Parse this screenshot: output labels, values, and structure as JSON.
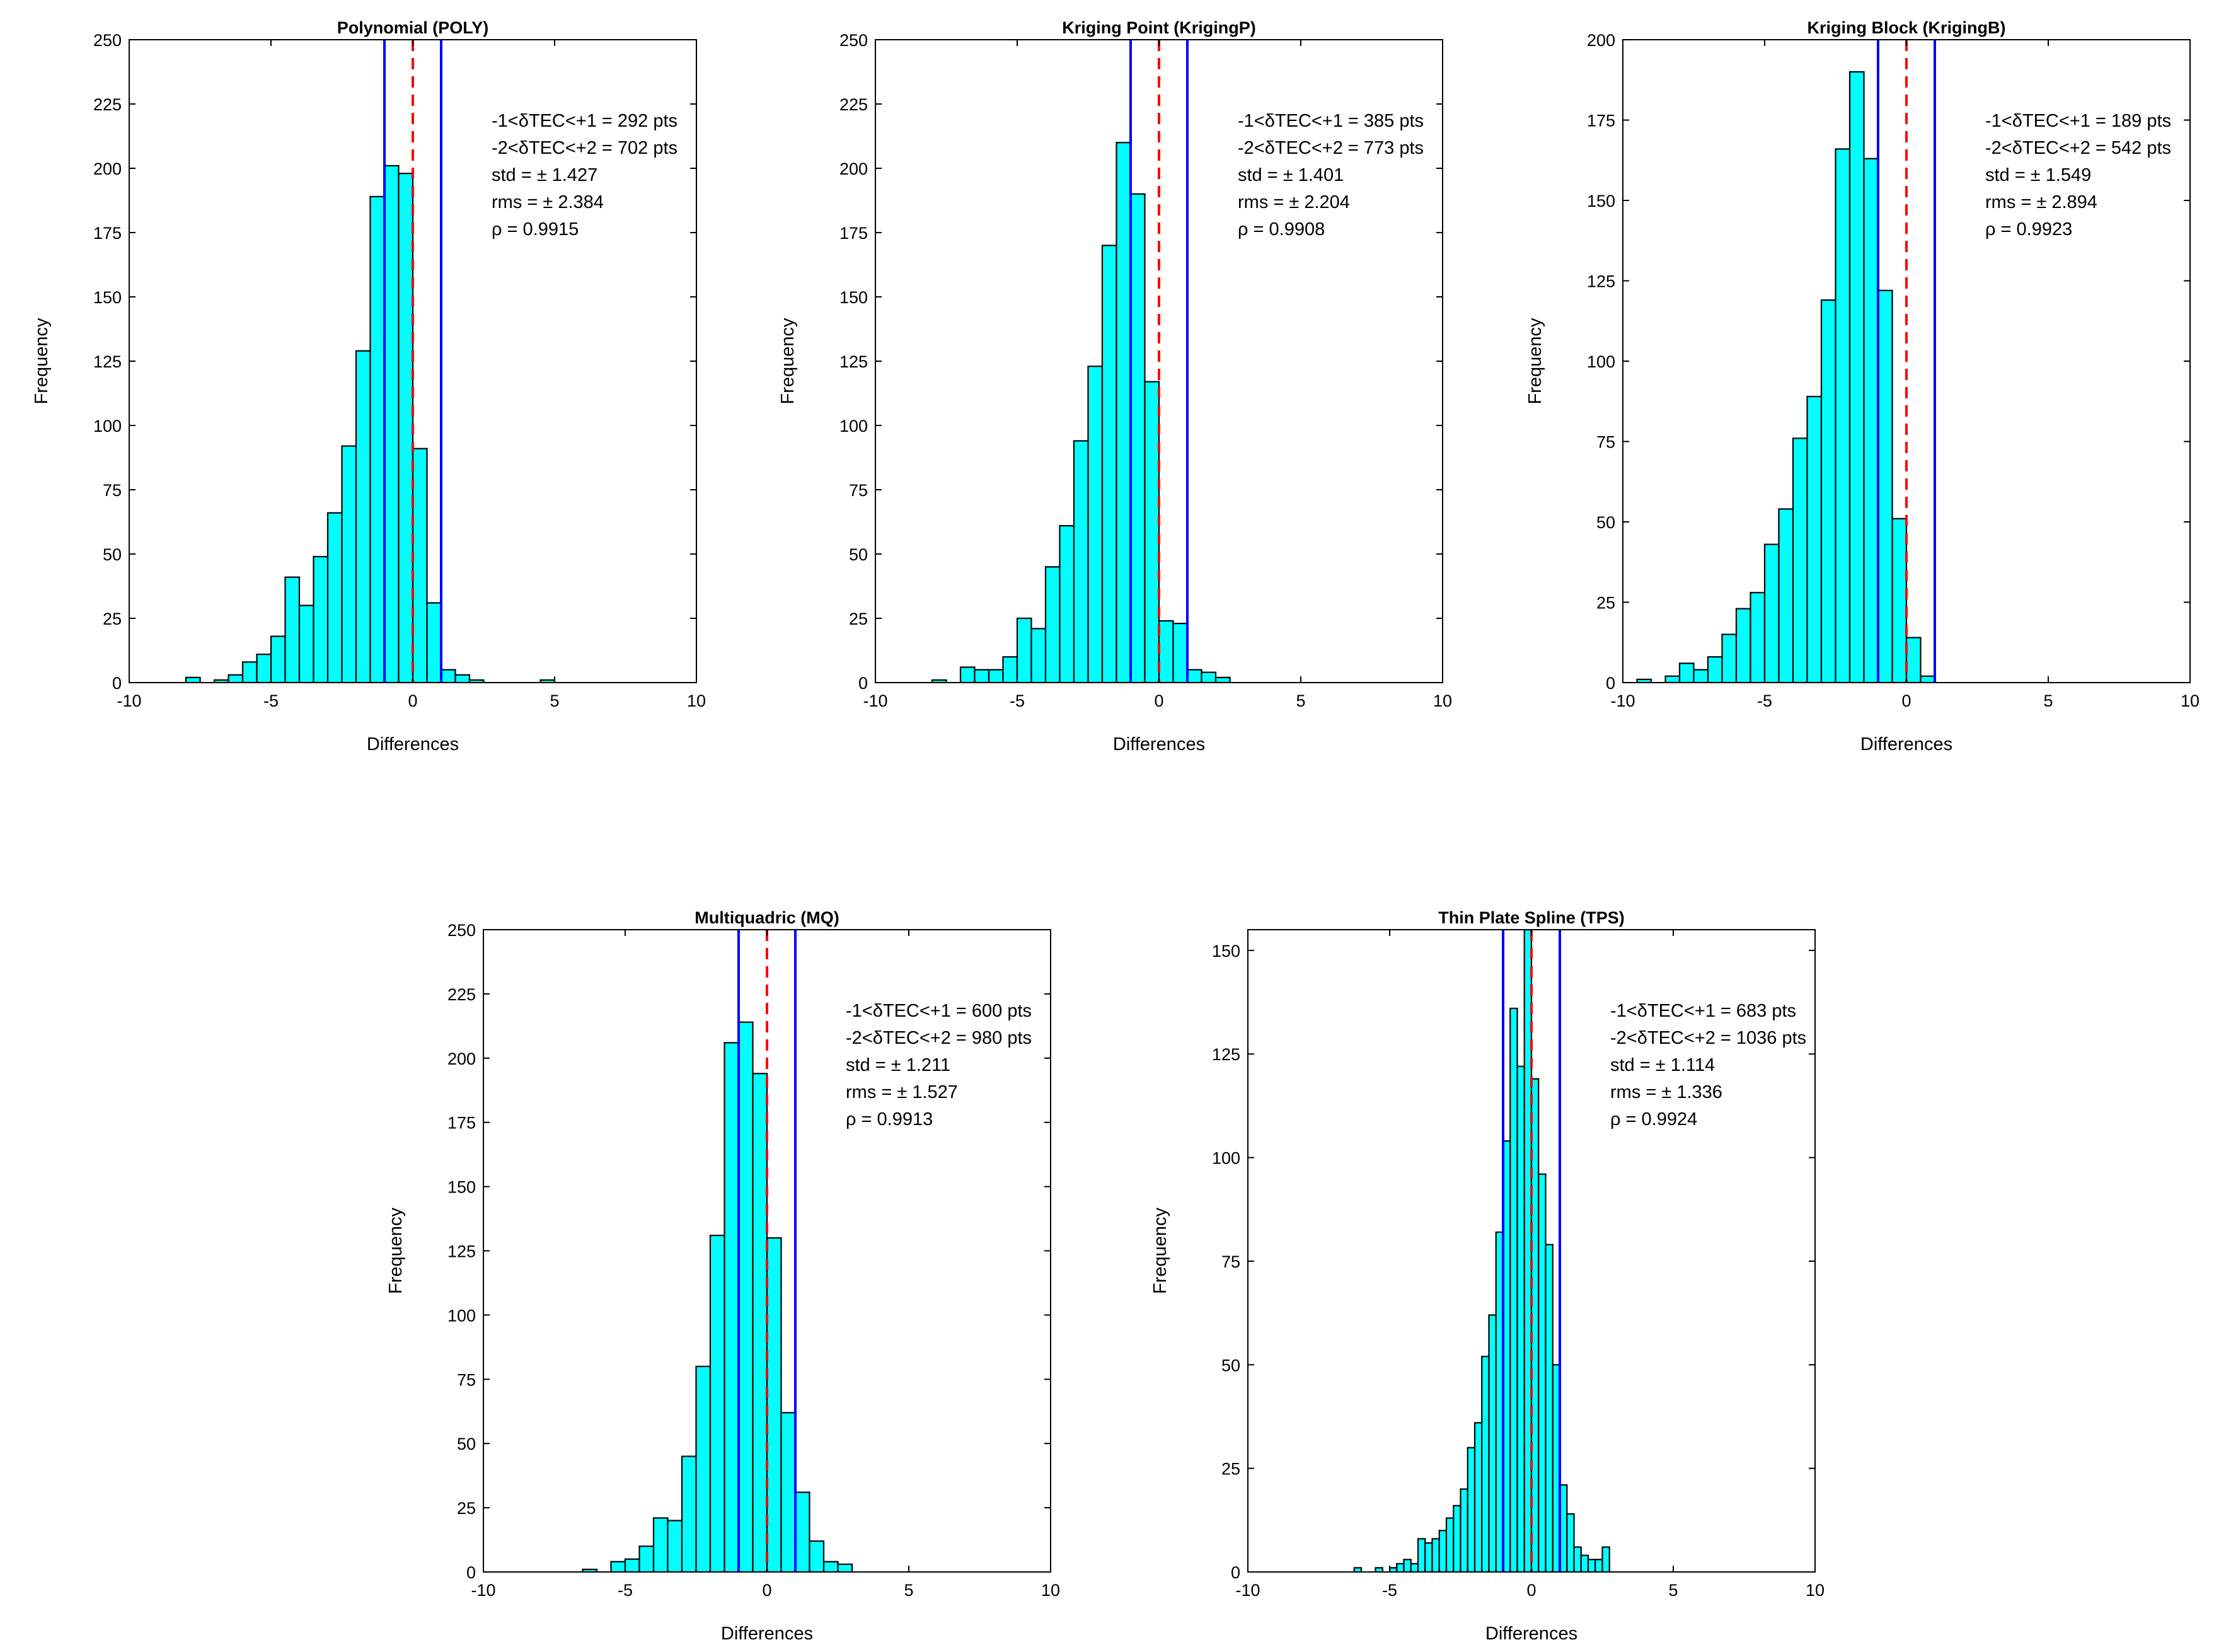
{
  "figure": "Histograms of TEC differences for five interpolation methods",
  "colors": {
    "bar_fill": "#00FFFF",
    "bar_edge": "#000000",
    "bound_line": "#0000FF",
    "zero_line": "#FF0000"
  },
  "chart_data": [
    {
      "type": "bar",
      "title": "Polynomial (POLY)",
      "xlabel": "Differences",
      "ylabel": "Frequency",
      "xlim": [
        -10,
        10
      ],
      "ylim": [
        0,
        250
      ],
      "xticks": [
        -10,
        -5,
        0,
        5,
        10
      ],
      "yticks": [
        0,
        25,
        50,
        75,
        100,
        125,
        150,
        175,
        200,
        225,
        250
      ],
      "bin_width": 0.5,
      "bin_centers": [
        -7.75,
        -7.25,
        -6.75,
        -6.25,
        -5.75,
        -5.25,
        -4.75,
        -4.25,
        -3.75,
        -3.25,
        -2.75,
        -2.25,
        -1.75,
        -1.25,
        -0.75,
        -0.25,
        0.25,
        0.75,
        1.25,
        1.75,
        2.25,
        2.75,
        3.25,
        3.75,
        4.25,
        4.75
      ],
      "values": [
        2,
        0,
        1,
        3,
        8,
        11,
        18,
        41,
        30,
        49,
        66,
        92,
        129,
        189,
        201,
        198,
        91,
        31,
        5,
        3,
        1,
        0,
        0,
        0,
        0,
        1
      ],
      "vlines": {
        "bounds": [
          -1,
          1
        ],
        "zero": 0
      },
      "annotations": [
        "-1<δTEC<+1 = 292 pts",
        "-2<δTEC<+2 = 702 pts",
        "std  = ± 1.427",
        "rms = ± 2.384",
        "ρ = 0.9915"
      ]
    },
    {
      "type": "bar",
      "title": "Kriging Point (KrigingP)",
      "xlabel": "Differences",
      "ylabel": "Frequency",
      "xlim": [
        -10,
        10
      ],
      "ylim": [
        0,
        250
      ],
      "xticks": [
        -10,
        -5,
        0,
        5,
        10
      ],
      "yticks": [
        0,
        25,
        50,
        75,
        100,
        125,
        150,
        175,
        200,
        225,
        250
      ],
      "bin_width": 0.5,
      "bin_centers": [
        -7.75,
        -7.25,
        -6.75,
        -6.25,
        -5.75,
        -5.25,
        -4.75,
        -4.25,
        -3.75,
        -3.25,
        -2.75,
        -2.25,
        -1.75,
        -1.25,
        -0.75,
        -0.25,
        0.25,
        0.75,
        1.25,
        1.75,
        2.25
      ],
      "values": [
        1,
        0,
        6,
        5,
        5,
        10,
        25,
        21,
        45,
        61,
        94,
        123,
        170,
        210,
        190,
        117,
        24,
        23,
        5,
        4,
        2
      ],
      "vlines": {
        "bounds": [
          -1,
          1
        ],
        "zero": 0
      },
      "annotations": [
        "-1<δTEC<+1 = 385 pts",
        "-2<δTEC<+2 = 773 pts",
        "std  = ± 1.401",
        "rms = ± 2.204",
        "ρ = 0.9908"
      ]
    },
    {
      "type": "bar",
      "title": "Kriging Block (KrigingB)",
      "xlabel": "Differences",
      "ylabel": "Frequency",
      "xlim": [
        -10,
        10
      ],
      "ylim": [
        0,
        200
      ],
      "xticks": [
        -10,
        -5,
        0,
        5,
        10
      ],
      "yticks": [
        0,
        25,
        50,
        75,
        100,
        125,
        150,
        175,
        200
      ],
      "bin_width": 0.5,
      "bin_centers": [
        -9.25,
        -8.75,
        -8.25,
        -7.75,
        -7.25,
        -6.75,
        -6.25,
        -5.75,
        -5.25,
        -4.75,
        -4.25,
        -3.75,
        -3.25,
        -2.75,
        -2.25,
        -1.75,
        -1.25,
        -0.75,
        -0.25,
        0.25,
        0.75
      ],
      "values": [
        1,
        0,
        2,
        6,
        4,
        8,
        15,
        23,
        28,
        43,
        54,
        76,
        89,
        119,
        166,
        190,
        163,
        122,
        51,
        14,
        2
      ],
      "vlines": {
        "bounds": [
          -1,
          1
        ],
        "zero": 0
      },
      "annotations": [
        "-1<δTEC<+1 = 189 pts",
        "-2<δTEC<+2 = 542 pts",
        "std  = ± 1.549",
        "rms = ± 2.894",
        "ρ = 0.9923"
      ]
    },
    {
      "type": "bar",
      "title": "Multiquadric (MQ)",
      "xlabel": "Differences",
      "ylabel": "Frequency",
      "xlim": [
        -10,
        10
      ],
      "ylim": [
        0,
        250
      ],
      "xticks": [
        -10,
        -5,
        0,
        5,
        10
      ],
      "yticks": [
        0,
        25,
        50,
        75,
        100,
        125,
        150,
        175,
        200,
        225,
        250
      ],
      "bin_width": 0.5,
      "bin_centers": [
        -6.25,
        -5.75,
        -5.25,
        -4.75,
        -4.25,
        -3.75,
        -3.25,
        -2.75,
        -2.25,
        -1.75,
        -1.25,
        -0.75,
        -0.25,
        0.25,
        0.75,
        1.25,
        1.75,
        2.25,
        2.75
      ],
      "values": [
        1,
        0,
        4,
        5,
        10,
        21,
        20,
        45,
        80,
        131,
        206,
        214,
        194,
        130,
        62,
        31,
        12,
        4,
        3
      ],
      "vlines": {
        "bounds": [
          -1,
          1
        ],
        "zero": 0
      },
      "annotations": [
        "-1<δTEC<+1 = 600 pts",
        "-2<δTEC<+2 = 980 pts",
        "std  = ± 1.211",
        "rms = ± 1.527",
        "ρ = 0.9913"
      ]
    },
    {
      "type": "bar",
      "title": "Thin Plate Spline (TPS)",
      "xlabel": "Differences",
      "ylabel": "Frequency",
      "xlim": [
        -10,
        10
      ],
      "ylim": [
        0,
        155
      ],
      "xticks": [
        -10,
        -5,
        0,
        5,
        10
      ],
      "yticks": [
        0,
        25,
        50,
        75,
        100,
        125,
        150
      ],
      "bin_width": 0.25,
      "bin_centers": [
        -6.125,
        -5.875,
        -5.625,
        -5.375,
        -5.125,
        -4.875,
        -4.625,
        -4.375,
        -4.125,
        -3.875,
        -3.625,
        -3.375,
        -3.125,
        -2.875,
        -2.625,
        -2.375,
        -2.125,
        -1.875,
        -1.625,
        -1.375,
        -1.125,
        -0.875,
        -0.625,
        -0.375,
        -0.125,
        0.125,
        0.375,
        0.625,
        0.875,
        1.125,
        1.375,
        1.625,
        1.875,
        2.125,
        2.375,
        2.625
      ],
      "values": [
        1,
        0,
        0,
        1,
        0,
        1,
        2,
        3,
        2,
        8,
        7,
        8,
        10,
        13,
        16,
        20,
        30,
        36,
        52,
        62,
        82,
        104,
        136,
        122,
        155,
        119,
        96,
        79,
        50,
        21,
        14,
        6,
        4,
        3,
        3,
        6
      ],
      "vlines": {
        "bounds": [
          -1,
          1
        ],
        "zero": 0
      },
      "annotations": [
        "-1<δTEC<+1 = 683 pts",
        "-2<δTEC<+2 = 1036 pts",
        "std  = ± 1.114",
        "rms = ± 1.336",
        "ρ = 0.9924"
      ]
    }
  ]
}
